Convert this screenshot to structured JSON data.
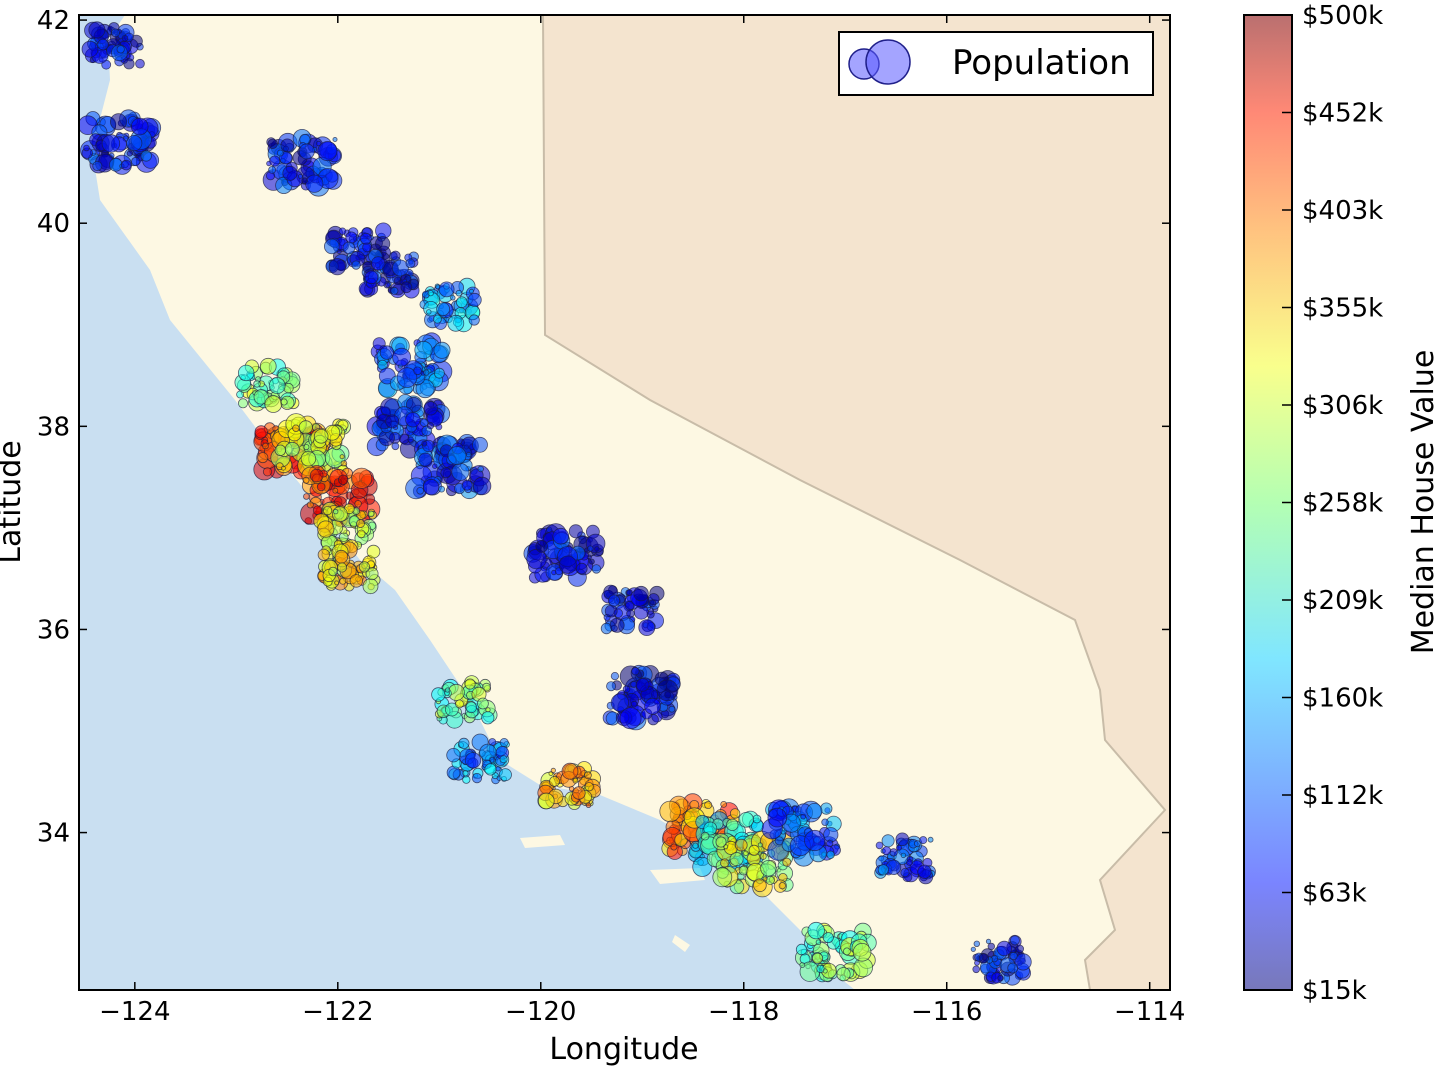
{
  "chart_data": {
    "type": "scatter",
    "title": "",
    "xlabel": "Longitude",
    "ylabel": "Latitude",
    "xlim": [
      -124.55,
      -113.8
    ],
    "ylim": [
      32.45,
      42.05
    ],
    "xticks": [
      -124,
      -122,
      -120,
      -118,
      -116,
      -114
    ],
    "xtick_labels": [
      "−124",
      "−122",
      "−120",
      "−118",
      "−116",
      "−114"
    ],
    "yticks": [
      34,
      36,
      38,
      40,
      42
    ],
    "ytick_labels": [
      "34",
      "36",
      "38",
      "40",
      "42"
    ],
    "grid": false,
    "background": "map of California",
    "legend": {
      "position": "top-right",
      "entries": [
        "Population"
      ]
    },
    "size_encoding": "Population",
    "color_encoding": "Median House Value",
    "colorbar": {
      "label": "Median House Value",
      "colormap": "jet",
      "range": [
        15,
        500
      ],
      "tick_labels": [
        "$15k",
        "$63k",
        "$112k",
        "$160k",
        "$209k",
        "$258k",
        "$306k",
        "$355k",
        "$403k",
        "$452k",
        "$500k"
      ]
    },
    "clusters": [
      {
        "lon": -124.2,
        "lat": 41.75,
        "value": 70,
        "population": 2
      },
      {
        "lon": -124.15,
        "lat": 40.8,
        "value": 80,
        "population": 3
      },
      {
        "lon": -122.35,
        "lat": 40.6,
        "value": 80,
        "population": 3
      },
      {
        "lon": -121.8,
        "lat": 39.75,
        "value": 70,
        "population": 2
      },
      {
        "lon": -121.5,
        "lat": 39.5,
        "value": 70,
        "population": 2
      },
      {
        "lon": -121.3,
        "lat": 38.6,
        "value": 120,
        "population": 3
      },
      {
        "lon": -120.9,
        "lat": 39.2,
        "value": 150,
        "population": 2
      },
      {
        "lon": -121.3,
        "lat": 38.0,
        "value": 90,
        "population": 3
      },
      {
        "lon": -120.9,
        "lat": 37.6,
        "value": 90,
        "population": 3
      },
      {
        "lon": -122.45,
        "lat": 37.75,
        "value": 400,
        "population": 3
      },
      {
        "lon": -122.25,
        "lat": 37.8,
        "value": 300,
        "population": 3
      },
      {
        "lon": -122.0,
        "lat": 37.3,
        "value": 420,
        "population": 3
      },
      {
        "lon": -121.9,
        "lat": 37.0,
        "value": 300,
        "population": 2
      },
      {
        "lon": -122.7,
        "lat": 38.4,
        "value": 250,
        "population": 2
      },
      {
        "lon": -121.9,
        "lat": 36.6,
        "value": 330,
        "population": 2
      },
      {
        "lon": -120.75,
        "lat": 35.3,
        "value": 250,
        "population": 2
      },
      {
        "lon": -120.6,
        "lat": 34.7,
        "value": 150,
        "population": 2
      },
      {
        "lon": -119.75,
        "lat": 36.75,
        "value": 70,
        "population": 3
      },
      {
        "lon": -119.1,
        "lat": 36.2,
        "value": 70,
        "population": 2
      },
      {
        "lon": -119.0,
        "lat": 35.35,
        "value": 70,
        "population": 3
      },
      {
        "lon": -119.7,
        "lat": 34.45,
        "value": 350,
        "population": 2
      },
      {
        "lon": -118.4,
        "lat": 34.05,
        "value": 380,
        "population": 3
      },
      {
        "lon": -118.15,
        "lat": 33.9,
        "value": 200,
        "population": 3
      },
      {
        "lon": -117.9,
        "lat": 33.7,
        "value": 300,
        "population": 3
      },
      {
        "lon": -117.4,
        "lat": 34.0,
        "value": 120,
        "population": 3
      },
      {
        "lon": -117.1,
        "lat": 32.8,
        "value": 250,
        "population": 3
      },
      {
        "lon": -116.4,
        "lat": 33.75,
        "value": 100,
        "population": 2
      },
      {
        "lon": -115.5,
        "lat": 32.75,
        "value": 70,
        "population": 2
      }
    ]
  }
}
